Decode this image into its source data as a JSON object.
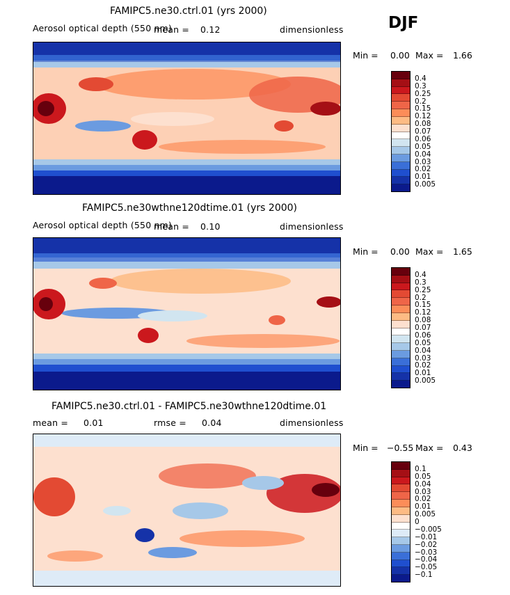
{
  "season": "DJF",
  "panels": [
    {
      "title": "FAMIPC5.ne30.ctrl.01 (yrs 2000)",
      "variable": "Aerosol optical depth (550 nm)",
      "mean_label": "mean =",
      "mean_value": "0.12",
      "units": "dimensionless",
      "min_label": "Min =",
      "min_value": "0.00",
      "max_label": "Max =",
      "max_value": "1.66",
      "colorbar": [
        "0.4",
        "0.3",
        "0.25",
        "0.2",
        "0.15",
        "0.12",
        "0.08",
        "0.07",
        "0.06",
        "0.05",
        "0.04",
        "0.03",
        "0.02",
        "0.01",
        "0.005"
      ]
    },
    {
      "title": "FAMIPC5.ne30wthne120dtime.01 (yrs 2000)",
      "variable": "Aerosol optical depth (550 nm)",
      "mean_label": "mean =",
      "mean_value": "0.10",
      "units": "dimensionless",
      "min_label": "Min =",
      "min_value": "0.00",
      "max_label": "Max =",
      "max_value": "1.65",
      "colorbar": [
        "0.4",
        "0.3",
        "0.25",
        "0.2",
        "0.15",
        "0.12",
        "0.08",
        "0.07",
        "0.06",
        "0.05",
        "0.04",
        "0.03",
        "0.02",
        "0.01",
        "0.005"
      ]
    },
    {
      "title": "FAMIPC5.ne30.ctrl.01 - FAMIPC5.ne30wthne120dtime.01",
      "mean_label": "mean =",
      "mean_value": "0.01",
      "rmse_label": "rmse =",
      "rmse_value": "0.04",
      "units": "dimensionless",
      "min_label": "Min =",
      "min_value": "−0.55",
      "max_label": "Max =",
      "max_value": "0.43",
      "colorbar": [
        "0.1",
        "0.05",
        "0.04",
        "0.03",
        "0.02",
        "0.01",
        "0.005",
        "0",
        "−0.005",
        "−0.01",
        "−0.02",
        "−0.03",
        "−0.04",
        "−0.05",
        "−0.1"
      ]
    }
  ],
  "colors": {
    "absolute_scale": [
      "#67000d",
      "#a50f15",
      "#cb181d",
      "#e34a33",
      "#ef6548",
      "#fc8d59",
      "#fdbb84",
      "#fde0cf",
      "#ffffff",
      "#d1e5f0",
      "#a6c8e8",
      "#6b9be0",
      "#3a6fd8",
      "#1f4fcf",
      "#1532a8",
      "#0b1a8c"
    ],
    "diff_scale": [
      "#67000d",
      "#a50f15",
      "#cb181d",
      "#e34a33",
      "#ef6548",
      "#fc8d59",
      "#fdbb84",
      "#fde0cf",
      "#ffffff",
      "#deebf7",
      "#a6c8e8",
      "#6b9be0",
      "#3a6fd8",
      "#1f4fcf",
      "#1532a8",
      "#0b1a8c"
    ]
  }
}
